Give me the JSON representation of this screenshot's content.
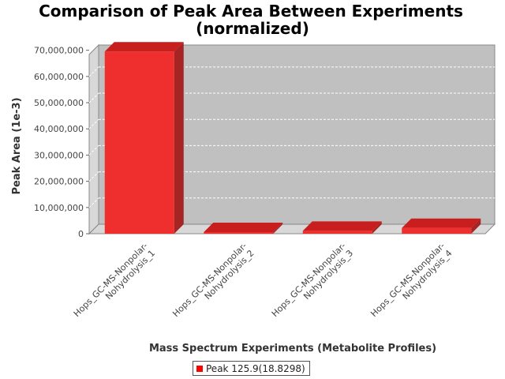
{
  "chart_data": {
    "type": "bar",
    "title_line1": "Comparison of Peak Area Between Experiments",
    "title_line2": "(normalized)",
    "xlabel": "Mass Spectrum Experiments (Metabolite Profiles)",
    "ylabel": "Peak Area (1e-3)",
    "ylim": [
      0,
      72000000
    ],
    "yticks": [
      0,
      10000000,
      20000000,
      30000000,
      40000000,
      50000000,
      60000000,
      70000000
    ],
    "ytick_labels": [
      "0",
      "10,000,000",
      "20,000,000",
      "30,000,000",
      "40,000,000",
      "50,000,000",
      "60,000,000",
      "70,000,000"
    ],
    "categories": [
      [
        "Hops_GC-MS-Nonpolar-",
        "Nohydrolysis_1"
      ],
      [
        "Hops_GC-MS-Nonpolar-",
        "Nohydrolysis_2"
      ],
      [
        "Hops_GC-MS-Nonpolar-",
        "Nohydrolysis_3"
      ],
      [
        "Hops_GC-MS-Nonpolar-",
        "Nohydrolysis_4"
      ]
    ],
    "series": [
      {
        "name": "Peak 125.9(18.8298)",
        "values": [
          69500000,
          600000,
          1100000,
          2200000
        ]
      }
    ],
    "grid": true,
    "legend_position": "bottom",
    "three_d": true
  },
  "colors": {
    "bar_front": "#ef2e2e",
    "bar_top": "#c81e1e",
    "bar_side": "#a52424",
    "plot_back": "#c0c0c0",
    "plot_wall": "#d8d8d8",
    "legend_swatch": "#ff0000"
  }
}
